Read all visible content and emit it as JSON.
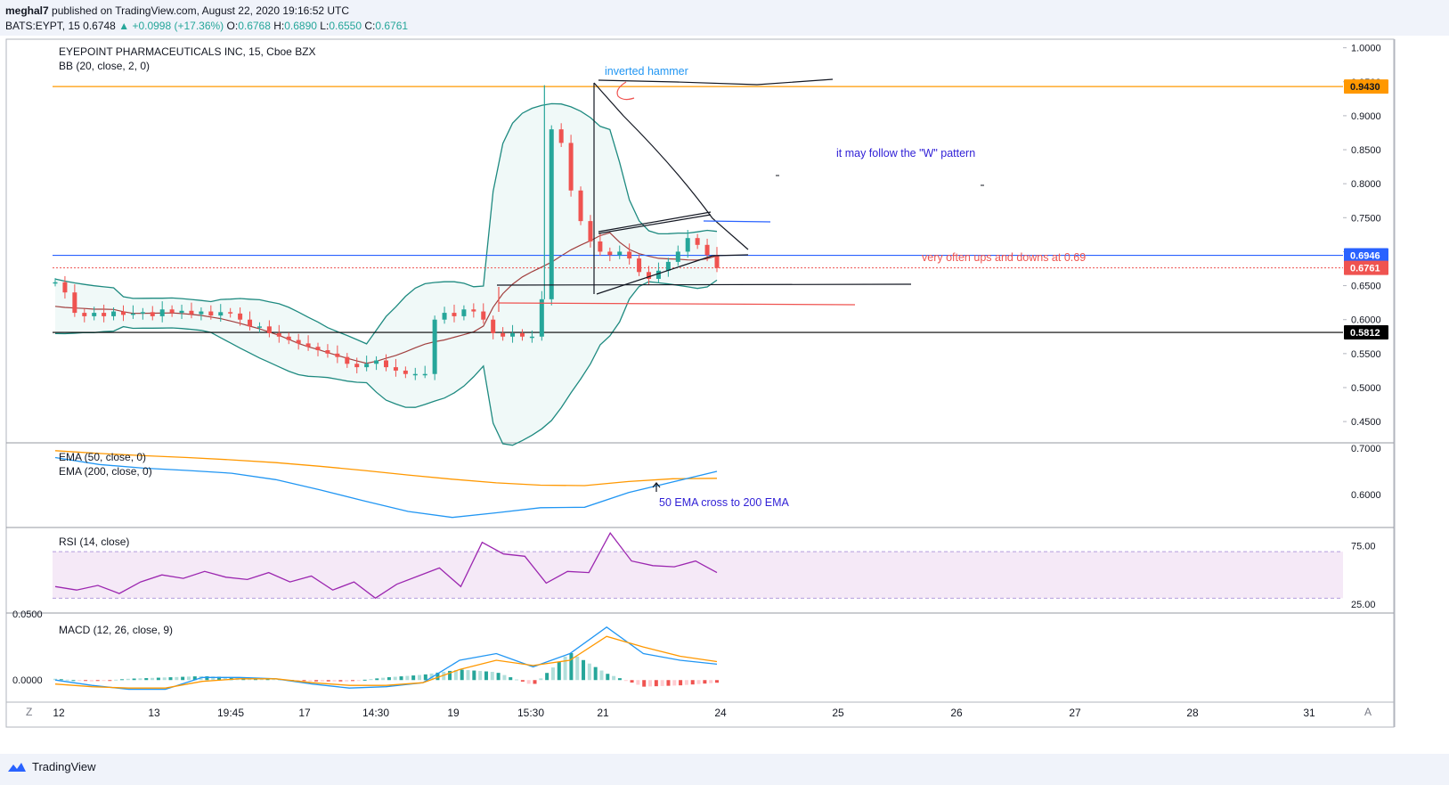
{
  "header": {
    "author": "meghal7",
    "published_text": "published on TradingView.com, August 22, 2020 19:16:52 UTC",
    "symbol_interval": "BATS:EYPT, 15",
    "last": "0.6748",
    "change": "+0.0998 (+17.36%)",
    "open_label": "O:",
    "open": "0.6768",
    "high_label": "H:",
    "high": "0.6890",
    "low_label": "L:",
    "low": "0.6550",
    "close_label": "C:",
    "close": "0.6761"
  },
  "footer": {
    "brand": "TradingView"
  },
  "chart_data": [
    {
      "type": "candlestick",
      "pane": "price",
      "title": "EYEPOINT PHARMACEUTICALS INC, 15, Cboe BZX",
      "indicator": "BB (20, close, 2, 0)",
      "ylim": [
        0.42,
        1.01
      ],
      "y_ticks": [
        "1.0000",
        "0.9500",
        "0.9000",
        "0.8500",
        "0.8000",
        "0.7500",
        "0.7000",
        "0.6500",
        "0.6000",
        "0.5500",
        "0.5000",
        "0.4500"
      ],
      "price_lines": [
        {
          "value": 0.943,
          "label": "0.9430",
          "color": "#ff9800"
        },
        {
          "value": 0.6946,
          "label": "0.6946",
          "color": "#2962ff"
        },
        {
          "value": 0.6761,
          "label": "0.6761",
          "color": "#ef5350"
        },
        {
          "value": 0.5812,
          "label": "0.5812",
          "color": "#000000"
        }
      ],
      "annotations": [
        {
          "text": "inverted hammer",
          "color": "#2196f3"
        },
        {
          "text": "it may follow the \"W\" pattern",
          "color": "#2f1fd6"
        },
        {
          "text": "very often ups and downs at 0.69",
          "color": "#ef5350"
        }
      ],
      "price_path": [
        0.655,
        0.64,
        0.61,
        0.605,
        0.61,
        0.605,
        0.612,
        0.607,
        0.609,
        0.611,
        0.605,
        0.615,
        0.61,
        0.613,
        0.608,
        0.612,
        0.606,
        0.611,
        0.609,
        0.6,
        0.59,
        0.59,
        0.58,
        0.575,
        0.57,
        0.565,
        0.56,
        0.555,
        0.55,
        0.545,
        0.535,
        0.53,
        0.535,
        0.54,
        0.53,
        0.525,
        0.52,
        0.52,
        0.52,
        0.6,
        0.61,
        0.605,
        0.615,
        0.612,
        0.6,
        0.58,
        0.575,
        0.58,
        0.575,
        0.575,
        0.63,
        0.88,
        0.86,
        0.79,
        0.745,
        0.715,
        0.7,
        0.695,
        0.7,
        0.69,
        0.67,
        0.66,
        0.672,
        0.685,
        0.7,
        0.72,
        0.71,
        0.695,
        0.676
      ]
    },
    {
      "type": "line",
      "pane": "ema",
      "ylim": [
        0.53,
        0.71
      ],
      "y_ticks": [
        "0.7000",
        "0.6000"
      ],
      "series": [
        {
          "name": "EMA (50, close, 0)",
          "color": "#ff9800",
          "values": [
            0.695,
            0.689,
            0.684,
            0.68,
            0.675,
            0.669,
            0.661,
            0.652,
            0.642,
            0.633,
            0.625,
            0.62,
            0.619,
            0.628,
            0.634,
            0.635
          ]
        },
        {
          "name": "EMA (200, close, 0)",
          "color": "#2196f3",
          "values": [
            0.68,
            0.665,
            0.657,
            0.652,
            0.646,
            0.632,
            0.61,
            0.586,
            0.563,
            0.55,
            0.56,
            0.571,
            0.572,
            0.604,
            0.627,
            0.65
          ]
        }
      ],
      "annotations": [
        {
          "text": "50 EMA cross to 200 EMA",
          "color": "#2f1fd6"
        }
      ]
    },
    {
      "type": "line",
      "pane": "rsi",
      "ylim": [
        18,
        90
      ],
      "y_ticks": [
        "75.00",
        "25.00"
      ],
      "band": [
        70,
        30
      ],
      "series": [
        {
          "name": "RSI (14, close)",
          "color": "#9c27b0",
          "values": [
            40,
            37,
            41,
            34,
            44,
            50,
            47,
            53,
            48,
            46,
            52,
            44,
            49,
            37,
            44,
            30,
            42,
            49,
            56,
            40,
            78,
            68,
            66,
            43,
            53,
            52,
            86,
            62,
            58,
            57,
            62,
            52
          ]
        }
      ]
    },
    {
      "type": "bar",
      "pane": "macd",
      "title": "MACD (12, 26, close, 9)",
      "ylim": [
        -0.016,
        0.05
      ],
      "y_ticks": [
        "0.0500",
        "0.0000"
      ],
      "series": [
        {
          "name": "MACD",
          "color": "#2196f3",
          "values": [
            0,
            -0.004,
            -0.007,
            -0.007,
            0.002,
            0.002,
            0.001,
            -0.003,
            -0.006,
            -0.005,
            -0.002,
            0.015,
            0.02,
            0.01,
            0.02,
            0.04,
            0.02,
            0.015,
            0.012
          ]
        },
        {
          "name": "Signal",
          "color": "#ff9800",
          "values": [
            -0.003,
            -0.005,
            -0.006,
            -0.006,
            -0.001,
            0.001,
            0.001,
            -0.002,
            -0.004,
            -0.004,
            -0.002,
            0.008,
            0.015,
            0.011,
            0.015,
            0.033,
            0.025,
            0.018,
            0.014
          ]
        },
        {
          "name": "Histogram",
          "color": "#26a69a",
          "values": [
            0.001,
            -0.001,
            0.001,
            0.002,
            0.003,
            0.002,
            0.001,
            -0.001,
            -0.001,
            0.002,
            0.004,
            0.008,
            0.006,
            -0.004,
            0.021,
            0.005,
            -0.005,
            -0.004,
            -0.002
          ]
        }
      ]
    }
  ],
  "x_ticks": [
    "12",
    "13",
    "19:45",
    "17",
    "14:30",
    "19",
    "15:30",
    "21",
    "24",
    "25",
    "26",
    "27",
    "28",
    "31"
  ],
  "axis_controls": {
    "left": "Z",
    "right": "A"
  }
}
